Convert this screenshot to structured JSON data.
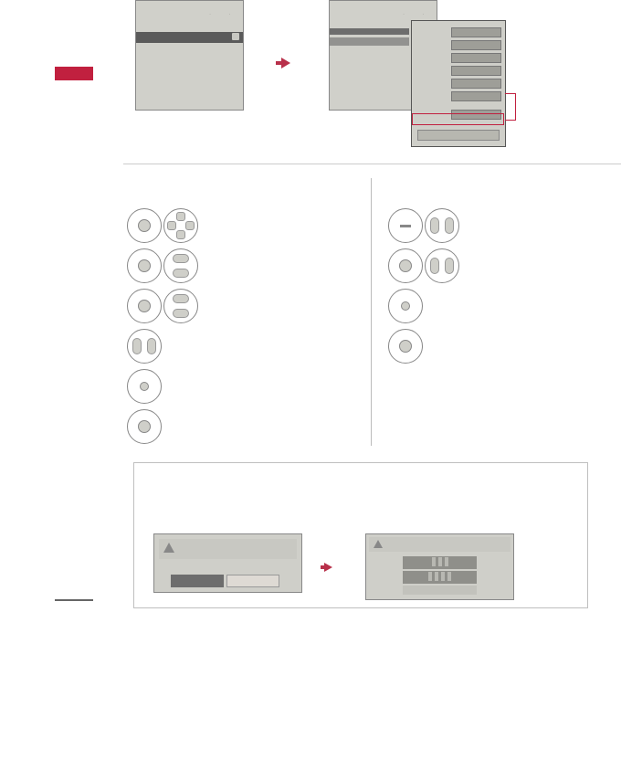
{
  "colors": {
    "accent": "#c1203f",
    "arrow": "#b8304a",
    "panel_bg": "#d0d0ca",
    "panel_border": "#888888",
    "dark_bar": "#5a5a5a",
    "mid_bar": "#6d6d6d",
    "light_bar": "#929290",
    "dropdown_row": "#9e9e98",
    "box_border": "#bfbfbf",
    "divider": "#bbbbbb",
    "rule": "#cccccc"
  },
  "top_section": {
    "screen_a": {
      "type": "ui-mockup",
      "has_status_icons": true,
      "has_highlight_bar": true,
      "lock_indicator": true
    },
    "screen_b": {
      "type": "ui-mockup",
      "has_status_icons": true,
      "bars": 2
    },
    "dropdown": {
      "row_count": 7,
      "highlighted_row_index": 6,
      "has_bottom_bar": true
    }
  },
  "steps": {
    "left": [
      {
        "primary": "knob",
        "secondary": "dpad-full"
      },
      {
        "primary": "knob",
        "secondary": "dpad-ud"
      },
      {
        "primary": "knob",
        "secondary": "dpad-ud"
      },
      {
        "primary": "dpad-lr"
      },
      {
        "primary": "knob-sm"
      },
      {
        "primary": "knob"
      }
    ],
    "right": [
      {
        "primary": "minus",
        "secondary": "dpad-lr"
      },
      {
        "primary": "knob",
        "secondary": "dpad-lr"
      },
      {
        "primary": "knob-sm"
      },
      {
        "primary": "knob"
      }
    ]
  },
  "bottom_box": {
    "mini_a": {
      "type": "dialog",
      "warning_icon": true,
      "buttons": 2,
      "button_states": [
        "selected",
        "normal"
      ]
    },
    "mini_b": {
      "type": "settings-list",
      "warning_icon": true,
      "rows": 3
    }
  }
}
